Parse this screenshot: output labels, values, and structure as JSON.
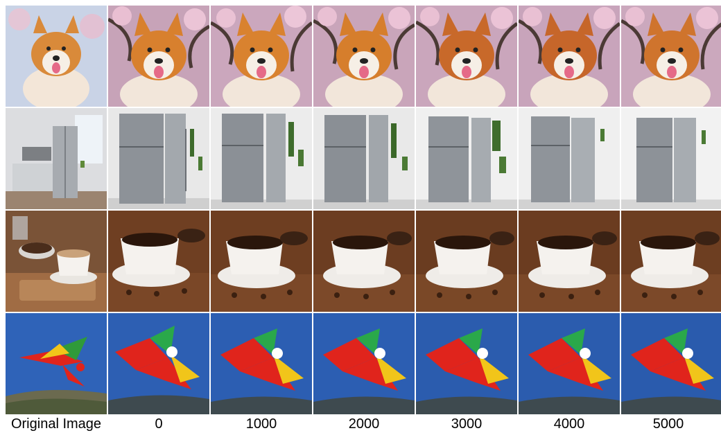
{
  "columns": [
    "Original Image",
    "0",
    "1000",
    "2000",
    "3000",
    "4000",
    "5000"
  ],
  "rows": [
    {
      "subject": "dog",
      "colors": {
        "bg": "#c8a9c8",
        "accent": "#d98a3a"
      }
    },
    {
      "subject": "refrigerator",
      "colors": {
        "bg": "#e6e6e6",
        "accent": "#9ea3a8"
      }
    },
    {
      "subject": "coffee",
      "colors": {
        "bg": "#7a4a2a",
        "accent": "#f5f2ee"
      }
    },
    {
      "subject": "parrot",
      "colors": {
        "bg": "#2f63b8",
        "accent": "#e0241c"
      }
    }
  ]
}
